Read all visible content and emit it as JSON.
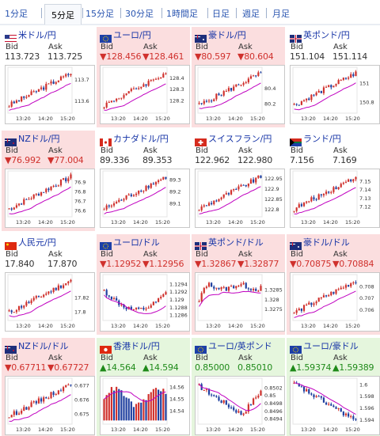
{
  "tabs": [
    {
      "label": "1分足",
      "active": false
    },
    {
      "label": "5分足",
      "active": true
    },
    {
      "label": "15分足",
      "active": false
    },
    {
      "label": "30分足",
      "active": false
    },
    {
      "label": "1時間足",
      "active": false
    },
    {
      "label": "日足",
      "active": false
    },
    {
      "label": "週足",
      "active": false
    },
    {
      "label": "月足",
      "active": false
    }
  ],
  "bid_label": "Bid",
  "ask_label": "Ask",
  "colors": {
    "up": "#1f8a1a",
    "down": "#d0312d",
    "candle_up": "#d0312d",
    "candle_down": "#1f3f9f",
    "ma": "#c000c0",
    "link": "#1533a6"
  },
  "pairs": [
    {
      "name": "米ドル/円",
      "flag": "us",
      "trend": "flat",
      "bid": "113.723",
      "ask": "113.725",
      "chart_data": {
        "type": "candlestick",
        "xticks": [
          "13:20",
          "14:20",
          "15:20"
        ],
        "yticks": [
          "113.7",
          "113.6"
        ],
        "ylim": [
          113.55,
          113.75
        ],
        "shape": "up"
      }
    },
    {
      "name": "ユーロ/円",
      "flag": "eu",
      "trend": "down",
      "bid": "▼128.456",
      "ask": "▼128.461",
      "chart_data": {
        "type": "candlestick",
        "xticks": [
          "13:20",
          "14:20",
          "15:20"
        ],
        "yticks": [
          "128.4",
          "128.3",
          "128.2"
        ],
        "ylim": [
          128.1,
          128.48
        ],
        "shape": "up"
      }
    },
    {
      "name": "豪ドル/円",
      "flag": "au",
      "trend": "down",
      "bid": "▼80.597",
      "ask": "▼80.604",
      "chart_data": {
        "type": "candlestick",
        "xticks": [
          "13:20",
          "14:20",
          "15:20"
        ],
        "yticks": [
          "80.4",
          "80.2"
        ],
        "ylim": [
          80.1,
          80.65
        ],
        "shape": "up"
      }
    },
    {
      "name": "英ポンド/円",
      "flag": "gb",
      "trend": "flat",
      "bid": "151.104",
      "ask": "151.114",
      "chart_data": {
        "type": "candlestick",
        "xticks": [
          "13:20",
          "14:20",
          "15:20"
        ],
        "yticks": [
          "151",
          "150.8"
        ],
        "ylim": [
          150.7,
          151.15
        ],
        "shape": "up"
      }
    },
    {
      "name": "NZドル/円",
      "flag": "nz",
      "trend": "down",
      "bid": "▼76.992",
      "ask": "▼77.004",
      "chart_data": {
        "type": "candlestick",
        "xticks": [
          "13:20",
          "14:20",
          "15:20"
        ],
        "yticks": [
          "76.9",
          "76.8",
          "76.7",
          "76.6"
        ],
        "ylim": [
          76.55,
          77.0
        ],
        "shape": "up"
      }
    },
    {
      "name": "カナダドル/円",
      "flag": "ca",
      "trend": "flat",
      "bid": "89.336",
      "ask": "89.353",
      "chart_data": {
        "type": "candlestick",
        "xticks": [
          "13:20",
          "14:20",
          "15:20"
        ],
        "yticks": [
          "89.3",
          "89.2",
          "89.1"
        ],
        "ylim": [
          89.0,
          89.36
        ],
        "shape": "up"
      }
    },
    {
      "name": "スイスフラン/円",
      "flag": "ch",
      "trend": "flat",
      "bid": "122.962",
      "ask": "122.980",
      "chart_data": {
        "type": "candlestick",
        "xticks": [
          "13:20",
          "14:20",
          "15:20"
        ],
        "yticks": [
          "122.95",
          "122.9",
          "122.85",
          "122.8"
        ],
        "ylim": [
          122.77,
          122.98
        ],
        "shape": "up"
      }
    },
    {
      "name": "ランド/円",
      "flag": "za",
      "trend": "flat",
      "bid": "7.156",
      "ask": "7.169",
      "chart_data": {
        "type": "candlestick",
        "xticks": [
          "13:20",
          "14:20",
          "15:20"
        ],
        "yticks": [
          "7.15",
          "7.14",
          "7.13",
          "7.12"
        ],
        "ylim": [
          7.11,
          7.16
        ],
        "shape": "up"
      }
    },
    {
      "name": "人民元/円",
      "flag": "cn",
      "trend": "flat",
      "bid": "17.840",
      "ask": "17.870",
      "chart_data": {
        "type": "candlestick",
        "xticks": [
          "13:20",
          "14:20",
          "15:20"
        ],
        "yticks": [
          "17.82",
          "17.8"
        ],
        "ylim": [
          17.79,
          17.85
        ],
        "shape": "up"
      }
    },
    {
      "name": "ユーロ/ドル",
      "flag": "eu",
      "trend": "down",
      "bid": "▼1.12952",
      "ask": "▼1.12956",
      "chart_data": {
        "type": "candlestick",
        "xticks": [
          "13:20",
          "14:20",
          "15:20"
        ],
        "yticks": [
          "1.1294",
          "1.1292",
          "1.129",
          "1.1288",
          "1.1286"
        ],
        "ylim": [
          1.1285,
          1.1296
        ],
        "shape": "dip"
      }
    },
    {
      "name": "英ポンド/ドル",
      "flag": "gb",
      "trend": "down",
      "bid": "▼1.32867",
      "ask": "▼1.32877",
      "chart_data": {
        "type": "candlestick",
        "xticks": [
          "13:20",
          "14:20",
          "15:20"
        ],
        "yticks": [
          "1.3285",
          "1.328",
          "1.3275"
        ],
        "ylim": [
          1.327,
          1.3292
        ],
        "shape": "flat"
      }
    },
    {
      "name": "豪ドル/ドル",
      "flag": "au",
      "trend": "down",
      "bid": "▼0.70875",
      "ask": "▼0.70884",
      "chart_data": {
        "type": "candlestick",
        "xticks": [
          "13:20",
          "14:20",
          "15:20"
        ],
        "yticks": [
          "0.708",
          "0.707",
          "0.706"
        ],
        "ylim": [
          0.7052,
          0.7089
        ],
        "shape": "up"
      }
    },
    {
      "name": "NZドル/ドル",
      "flag": "nz",
      "trend": "down",
      "bid": "▼0.67711",
      "ask": "▼0.67727",
      "chart_data": {
        "type": "candlestick",
        "xticks": [
          "13:20",
          "14:20",
          "15:20"
        ],
        "yticks": [
          "0.677",
          "0.676",
          "0.675"
        ],
        "ylim": [
          0.6744,
          0.6774
        ],
        "shape": "up"
      }
    },
    {
      "name": "香港ドル/円",
      "flag": "hk",
      "trend": "up",
      "bid": "▲14.564",
      "ask": "▲14.594",
      "chart_data": {
        "type": "candlestick",
        "xticks": [
          "13:20",
          "14:20",
          "15:20"
        ],
        "yticks": [
          "14.56",
          "14.55",
          "14.54"
        ],
        "ylim": [
          14.53,
          14.566
        ],
        "shape": "bars"
      }
    },
    {
      "name": "ユーロ/英ポンド",
      "flag": "eu",
      "trend": "up",
      "bid": "0.85000",
      "ask": "0.85010",
      "chart_data": {
        "type": "candlestick",
        "xticks": [
          "13:20",
          "14:20",
          "15:20"
        ],
        "yticks": [
          "0.8502",
          "0.85",
          "0.8498",
          "0.8496",
          "0.8494"
        ],
        "ylim": [
          0.8493,
          0.8504
        ],
        "shape": "downup"
      }
    },
    {
      "name": "ユーロ/豪ドル",
      "flag": "eu",
      "trend": "up",
      "bid": "▲1.59374",
      "ask": "▲1.59389",
      "chart_data": {
        "type": "candlestick",
        "xticks": [
          "13:20",
          "14:20",
          "15:20"
        ],
        "yticks": [
          "1.6",
          "1.598",
          "1.596",
          "1.594"
        ],
        "ylim": [
          1.5935,
          1.6008
        ],
        "shape": "down"
      }
    }
  ]
}
